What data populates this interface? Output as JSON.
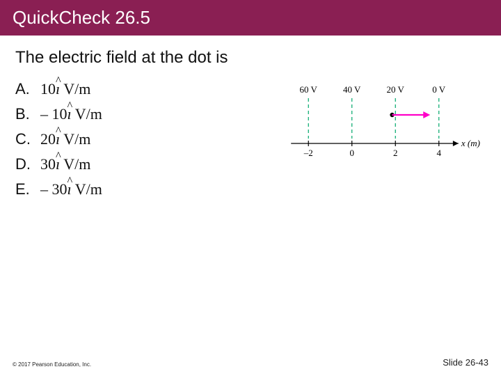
{
  "title": "QuickCheck 26.5",
  "question": "The electric field at the dot is",
  "options": [
    {
      "letter": "A.",
      "prefix": "",
      "value": "10",
      "unit": " V/m"
    },
    {
      "letter": "B.",
      "prefix": "– ",
      "value": "10",
      "unit": " V/m"
    },
    {
      "letter": "C.",
      "prefix": "",
      "value": "20",
      "unit": " V/m"
    },
    {
      "letter": "D.",
      "prefix": "",
      "value": "30",
      "unit": " V/m"
    },
    {
      "letter": "E.",
      "prefix": "– ",
      "value": "30",
      "unit": " V/m"
    }
  ],
  "diagram": {
    "potentials": [
      "60 V",
      "40 V",
      "20 V",
      "0 V"
    ],
    "potential_x": [
      -2,
      0,
      2,
      4
    ],
    "axis_label": "x (m)",
    "xticks": [
      "–2",
      "0",
      "2",
      "4"
    ],
    "xtick_positions": [
      -2,
      0,
      2,
      4
    ],
    "dot_x": 1.85,
    "arrow_to_x": 3.6,
    "xlim": [
      -3,
      5
    ],
    "colors": {
      "dashed": "#00a86b",
      "axis": "#000000",
      "dot": "#000000",
      "arrow": "#ff00c8",
      "text": "#000000"
    },
    "font_size_labels": 13,
    "line_width_axis": 1.2,
    "line_width_dashed": 1.2,
    "dash_pattern": "5,4",
    "dot_radius": 3.2,
    "arrow_width": 2.2
  },
  "footer": {
    "copyright": "© 2017 Pearson Education, Inc.",
    "slide_number": "Slide 26-43"
  }
}
